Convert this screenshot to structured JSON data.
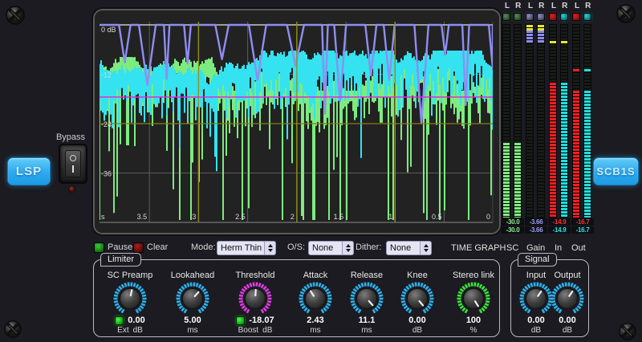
{
  "branding": {
    "left": "LSP",
    "right": "SCB1S"
  },
  "bypass": {
    "label": "Bypass"
  },
  "graph": {
    "y_ticks": [
      {
        "label": "0 dB",
        "db": 0,
        "style": "bright"
      },
      {
        "label": "-12",
        "db": -12,
        "style": "grid"
      },
      {
        "label": "-24",
        "db": -24,
        "style": "accent"
      },
      {
        "label": "-36",
        "db": -36,
        "style": "grid"
      }
    ],
    "x_ticks": [
      {
        "label": "s"
      },
      {
        "label": "3.5"
      },
      {
        "label": "3",
        "accent": true
      },
      {
        "label": "2.5"
      },
      {
        "label": "2",
        "accent": true
      },
      {
        "label": "1.5"
      },
      {
        "label": "1",
        "accent": true
      },
      {
        "label": "0.5"
      },
      {
        "label": "0"
      }
    ],
    "threshold_db": -18.07,
    "colors": {
      "in_trace": "#35e2ef",
      "sc_trace": "#7deb7f",
      "gain_trace": "#8e8ef2",
      "threshold_line": "#e02ed2",
      "grid": "#5c5c5c",
      "grid_accent_v": "#8f8f1a",
      "grid_accent_h": "#8a7d10",
      "zero_line": "#e9e9e9",
      "axis_text": "#d8d8d8"
    },
    "seed": 1337
  },
  "meter_block": {
    "meters": [
      {
        "name": "SC",
        "channel_labels": [
          "L",
          "R"
        ],
        "led_colors": [
          "#4f8f4f",
          "#4f8f4f"
        ],
        "values": [
          {
            "text": "-30.0",
            "color": "#8df08d"
          },
          {
            "text": "-30.0",
            "color": "#8df08d"
          }
        ],
        "bars": [
          {
            "color": "#7feb7f",
            "segments": [
              {
                "top": 147,
                "height": 95
              }
            ]
          },
          {
            "color": "#7feb7f",
            "segments": [
              {
                "top": 147,
                "height": 95
              }
            ]
          }
        ]
      },
      {
        "name": "Gain",
        "channel_labels": [
          "L",
          "R"
        ],
        "led_colors": [
          "#8d8dc6",
          "#8d8dc6"
        ],
        "values": [
          {
            "text": "-3.66",
            "color": "#9d9df2"
          },
          {
            "text": "-3.66",
            "color": "#9d9df2"
          }
        ],
        "bars": [
          {
            "color": "#8d8dee",
            "segments": [
              {
                "top": 0,
                "height": 7,
                "color": "#e6e632"
              },
              {
                "top": 7,
                "height": 15
              }
            ]
          },
          {
            "color": "#8d8dee",
            "segments": [
              {
                "top": 0,
                "height": 7,
                "color": "#e6e632"
              },
              {
                "top": 7,
                "height": 15
              }
            ]
          }
        ]
      },
      {
        "name": "In",
        "channel_labels": [
          "L",
          "R"
        ],
        "led_colors": [
          "#ee1c1c",
          "#19dcdc"
        ],
        "values": [
          {
            "text": "-14.9",
            "color": "#f23535"
          },
          {
            "text": "-14.9",
            "color": "#28e8e8"
          }
        ],
        "bars": [
          {
            "color": "#ee2020",
            "segments": [
              {
                "top": 20,
                "height": 4,
                "color": "#e6e632"
              },
              {
                "top": 72,
                "height": 170
              }
            ]
          },
          {
            "color": "#20dede",
            "segments": [
              {
                "top": 20,
                "height": 4,
                "color": "#e6e632"
              },
              {
                "top": 72,
                "height": 170
              }
            ]
          }
        ]
      },
      {
        "name": "Out",
        "channel_labels": [
          "L",
          "R"
        ],
        "led_colors": [
          "#ee1c1c",
          "#19dcdc"
        ],
        "values": [
          {
            "text": "-16.7",
            "color": "#f23535"
          },
          {
            "text": "-16.7",
            "color": "#28e8e8"
          }
        ],
        "bars": [
          {
            "color": "#ee2020",
            "segments": [
              {
                "top": 55,
                "height": 4
              },
              {
                "top": 82,
                "height": 160
              }
            ]
          },
          {
            "color": "#20dede",
            "segments": [
              {
                "top": 55,
                "height": 4
              },
              {
                "top": 82,
                "height": 160
              }
            ]
          }
        ]
      }
    ]
  },
  "controls": {
    "pause": "Pause",
    "clear": "Clear",
    "mode_label": "Mode:",
    "mode_value": "Herm Thin",
    "os_label": "O/S:",
    "os_value": "None",
    "dither_label": "Dither:",
    "dither_value": "None",
    "captions": [
      "TIME GRAPH",
      "SC",
      "Gain",
      "In",
      "Out"
    ]
  },
  "limiter": {
    "title": "Limiter",
    "knobs": [
      {
        "label": "SC Preamp",
        "value": "0.00",
        "unit": "dB",
        "led_label": "Ext",
        "color": "#2bb2ee",
        "angle": 12
      },
      {
        "label": "Lookahead",
        "value": "5.00",
        "unit": "ms",
        "color": "#2bb2ee",
        "angle": 42
      },
      {
        "label": "Threshold",
        "value": "-18.07",
        "unit": "dB",
        "led_label": "Boost",
        "color": "#e23ae2",
        "angle": 4
      },
      {
        "label": "Attack",
        "value": "2.43",
        "unit": "ms",
        "color": "#2bb2ee",
        "angle": -32
      },
      {
        "label": "Release",
        "value": "11.1",
        "unit": "ms",
        "color": "#2bb2ee",
        "angle": 138
      },
      {
        "label": "Knee",
        "value": "0.00",
        "unit": "dB",
        "color": "#2bb2ee",
        "angle": 140
      },
      {
        "label": "Stereo link",
        "value": "100",
        "unit": "%",
        "color": "#38e438",
        "angle": 148
      }
    ]
  },
  "signal": {
    "title": "Signal",
    "knobs": [
      {
        "label": "Input",
        "value": "0.00",
        "unit": "dB",
        "color": "#2bb2ee",
        "angle": 35
      },
      {
        "label": "Output",
        "value": "0.00",
        "unit": "dB",
        "color": "#2bb2ee",
        "angle": 35
      }
    ]
  }
}
